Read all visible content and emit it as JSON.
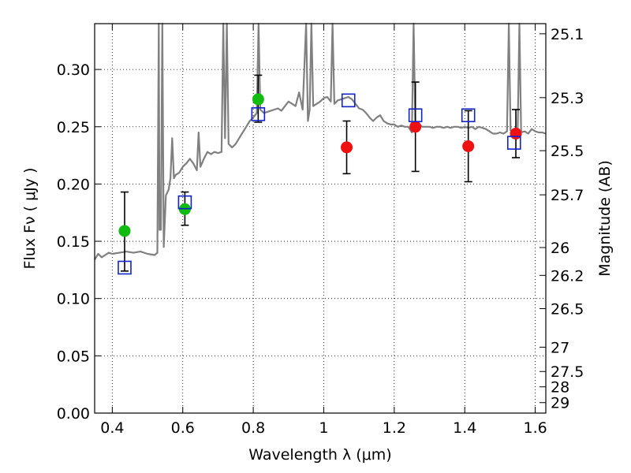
{
  "chart_data": {
    "type": "scatter",
    "title": "",
    "xlabel": "Wavelength  λ (μm)",
    "ylabel": "Flux  Fν  ( μJy )",
    "y2label": "Magnitude (AB)",
    "xlim": [
      0.35,
      1.63
    ],
    "ylim": [
      0.0,
      0.34
    ],
    "x_ticks": [
      {
        "value": 0.4,
        "label": "0.4"
      },
      {
        "value": 0.6,
        "label": "0.6"
      },
      {
        "value": 0.8,
        "label": "0.8"
      },
      {
        "value": 1.0,
        "label": "1"
      },
      {
        "value": 1.2,
        "label": "1.2"
      },
      {
        "value": 1.4,
        "label": "1.4"
      },
      {
        "value": 1.6,
        "label": "1.6"
      }
    ],
    "y_ticks": [
      {
        "value": 0.0,
        "label": "0.00"
      },
      {
        "value": 0.05,
        "label": "0.05"
      },
      {
        "value": 0.1,
        "label": "0.10"
      },
      {
        "value": 0.15,
        "label": "0.15"
      },
      {
        "value": 0.2,
        "label": "0.20"
      },
      {
        "value": 0.25,
        "label": "0.25"
      },
      {
        "value": 0.3,
        "label": "0.30"
      }
    ],
    "y2_ticks": [
      {
        "value": 25.1,
        "label": "25.1"
      },
      {
        "value": 25.3,
        "label": "25.3"
      },
      {
        "value": 25.5,
        "label": "25.5"
      },
      {
        "value": 25.7,
        "label": "25.7"
      },
      {
        "value": 26.0,
        "label": "26"
      },
      {
        "value": 26.2,
        "label": "26.2"
      },
      {
        "value": 26.5,
        "label": "26.5"
      },
      {
        "value": 27.0,
        "label": "27"
      },
      {
        "value": 27.5,
        "label": "27.5"
      },
      {
        "value": 28.0,
        "label": "28"
      },
      {
        "value": 29.0,
        "label": "29"
      }
    ],
    "grid": true,
    "colors": {
      "green": "#11bb11",
      "red": "#ee1111",
      "blue_square": "#1122cc",
      "sed": "#808080",
      "errorbar": "#000000"
    },
    "series": [
      {
        "marker": "circle",
        "color": "green",
        "points": [
          {
            "x": 0.435,
            "y": 0.159,
            "err_lo": 0.035,
            "err_hi": 0.034
          },
          {
            "x": 0.606,
            "y": 0.178,
            "err_lo": 0.014,
            "err_hi": 0.015
          },
          {
            "x": 0.814,
            "y": 0.274,
            "err_lo": 0.02,
            "err_hi": 0.021
          }
        ]
      },
      {
        "marker": "circle",
        "color": "red",
        "points": [
          {
            "x": 1.065,
            "y": 0.232,
            "err_lo": 0.023,
            "err_hi": 0.023
          },
          {
            "x": 1.26,
            "y": 0.25,
            "err_lo": 0.039,
            "err_hi": 0.039
          },
          {
            "x": 1.41,
            "y": 0.233,
            "err_lo": 0.031,
            "err_hi": 0.031
          },
          {
            "x": 1.545,
            "y": 0.244,
            "err_lo": 0.021,
            "err_hi": 0.021
          }
        ]
      },
      {
        "marker": "open-square",
        "color": "blue_square",
        "points": [
          {
            "x": 0.435,
            "y": 0.127
          },
          {
            "x": 0.606,
            "y": 0.184
          },
          {
            "x": 0.814,
            "y": 0.261
          },
          {
            "x": 1.07,
            "y": 0.273
          },
          {
            "x": 1.26,
            "y": 0.26
          },
          {
            "x": 1.41,
            "y": 0.26
          },
          {
            "x": 1.54,
            "y": 0.236
          }
        ]
      },
      {
        "type": "line",
        "color": "sed",
        "points": [
          [
            0.35,
            0.134
          ],
          [
            0.36,
            0.139
          ],
          [
            0.37,
            0.136
          ],
          [
            0.38,
            0.138
          ],
          [
            0.39,
            0.14
          ],
          [
            0.4,
            0.139
          ],
          [
            0.42,
            0.14
          ],
          [
            0.44,
            0.141
          ],
          [
            0.46,
            0.14
          ],
          [
            0.48,
            0.141
          ],
          [
            0.5,
            0.139
          ],
          [
            0.52,
            0.138
          ],
          [
            0.528,
            0.14
          ],
          [
            0.532,
            0.34
          ],
          [
            0.534,
            0.16
          ],
          [
            0.538,
            0.16
          ],
          [
            0.542,
            0.34
          ],
          [
            0.546,
            0.145
          ],
          [
            0.552,
            0.19
          ],
          [
            0.56,
            0.195
          ],
          [
            0.565,
            0.205
          ],
          [
            0.57,
            0.24
          ],
          [
            0.575,
            0.205
          ],
          [
            0.58,
            0.208
          ],
          [
            0.59,
            0.21
          ],
          [
            0.6,
            0.215
          ],
          [
            0.61,
            0.218
          ],
          [
            0.62,
            0.222
          ],
          [
            0.63,
            0.218
          ],
          [
            0.64,
            0.212
          ],
          [
            0.645,
            0.245
          ],
          [
            0.65,
            0.215
          ],
          [
            0.66,
            0.222
          ],
          [
            0.67,
            0.228
          ],
          [
            0.68,
            0.226
          ],
          [
            0.69,
            0.228
          ],
          [
            0.7,
            0.227
          ],
          [
            0.71,
            0.228
          ],
          [
            0.715,
            0.34
          ],
          [
            0.72,
            0.24
          ],
          [
            0.725,
            0.34
          ],
          [
            0.73,
            0.235
          ],
          [
            0.74,
            0.232
          ],
          [
            0.75,
            0.235
          ],
          [
            0.76,
            0.24
          ],
          [
            0.77,
            0.245
          ],
          [
            0.78,
            0.25
          ],
          [
            0.79,
            0.255
          ],
          [
            0.8,
            0.258
          ],
          [
            0.81,
            0.262
          ],
          [
            0.815,
            0.34
          ],
          [
            0.82,
            0.265
          ],
          [
            0.83,
            0.262
          ],
          [
            0.84,
            0.263
          ],
          [
            0.85,
            0.264
          ],
          [
            0.86,
            0.265
          ],
          [
            0.87,
            0.266
          ],
          [
            0.88,
            0.264
          ],
          [
            0.89,
            0.268
          ],
          [
            0.9,
            0.272
          ],
          [
            0.91,
            0.27
          ],
          [
            0.92,
            0.268
          ],
          [
            0.93,
            0.28
          ],
          [
            0.94,
            0.265
          ],
          [
            0.95,
            0.34
          ],
          [
            0.955,
            0.255
          ],
          [
            0.96,
            0.265
          ],
          [
            0.965,
            0.34
          ],
          [
            0.97,
            0.268
          ],
          [
            0.98,
            0.27
          ],
          [
            0.99,
            0.272
          ],
          [
            1.0,
            0.275
          ],
          [
            1.01,
            0.276
          ],
          [
            1.02,
            0.272
          ],
          [
            1.025,
            0.34
          ],
          [
            1.03,
            0.27
          ],
          [
            1.04,
            0.273
          ],
          [
            1.05,
            0.274
          ],
          [
            1.06,
            0.275
          ],
          [
            1.07,
            0.276
          ],
          [
            1.08,
            0.274
          ],
          [
            1.09,
            0.27
          ],
          [
            1.1,
            0.266
          ],
          [
            1.11,
            0.265
          ],
          [
            1.12,
            0.262
          ],
          [
            1.13,
            0.258
          ],
          [
            1.14,
            0.255
          ],
          [
            1.15,
            0.258
          ],
          [
            1.16,
            0.26
          ],
          [
            1.17,
            0.255
          ],
          [
            1.18,
            0.253
          ],
          [
            1.19,
            0.252
          ],
          [
            1.2,
            0.252
          ],
          [
            1.21,
            0.25
          ],
          [
            1.22,
            0.251
          ],
          [
            1.23,
            0.25
          ],
          [
            1.24,
            0.25
          ],
          [
            1.25,
            0.245
          ],
          [
            1.255,
            0.34
          ],
          [
            1.26,
            0.248
          ],
          [
            1.27,
            0.252
          ],
          [
            1.28,
            0.25
          ],
          [
            1.29,
            0.25
          ],
          [
            1.3,
            0.25
          ],
          [
            1.31,
            0.249
          ],
          [
            1.32,
            0.25
          ],
          [
            1.33,
            0.25
          ],
          [
            1.34,
            0.249
          ],
          [
            1.35,
            0.25
          ],
          [
            1.36,
            0.249
          ],
          [
            1.37,
            0.25
          ],
          [
            1.38,
            0.25
          ],
          [
            1.39,
            0.249
          ],
          [
            1.4,
            0.25
          ],
          [
            1.41,
            0.249
          ],
          [
            1.42,
            0.25
          ],
          [
            1.43,
            0.248
          ],
          [
            1.44,
            0.25
          ],
          [
            1.45,
            0.249
          ],
          [
            1.46,
            0.248
          ],
          [
            1.47,
            0.246
          ],
          [
            1.48,
            0.244
          ],
          [
            1.49,
            0.244
          ],
          [
            1.5,
            0.245
          ],
          [
            1.51,
            0.244
          ],
          [
            1.52,
            0.246
          ],
          [
            1.525,
            0.34
          ],
          [
            1.53,
            0.247
          ],
          [
            1.54,
            0.246
          ],
          [
            1.55,
            0.245
          ],
          [
            1.555,
            0.34
          ],
          [
            1.56,
            0.245
          ],
          [
            1.57,
            0.246
          ],
          [
            1.58,
            0.244
          ],
          [
            1.59,
            0.248
          ],
          [
            1.6,
            0.246
          ],
          [
            1.61,
            0.245
          ],
          [
            1.62,
            0.245
          ],
          [
            1.63,
            0.244
          ]
        ]
      }
    ]
  }
}
